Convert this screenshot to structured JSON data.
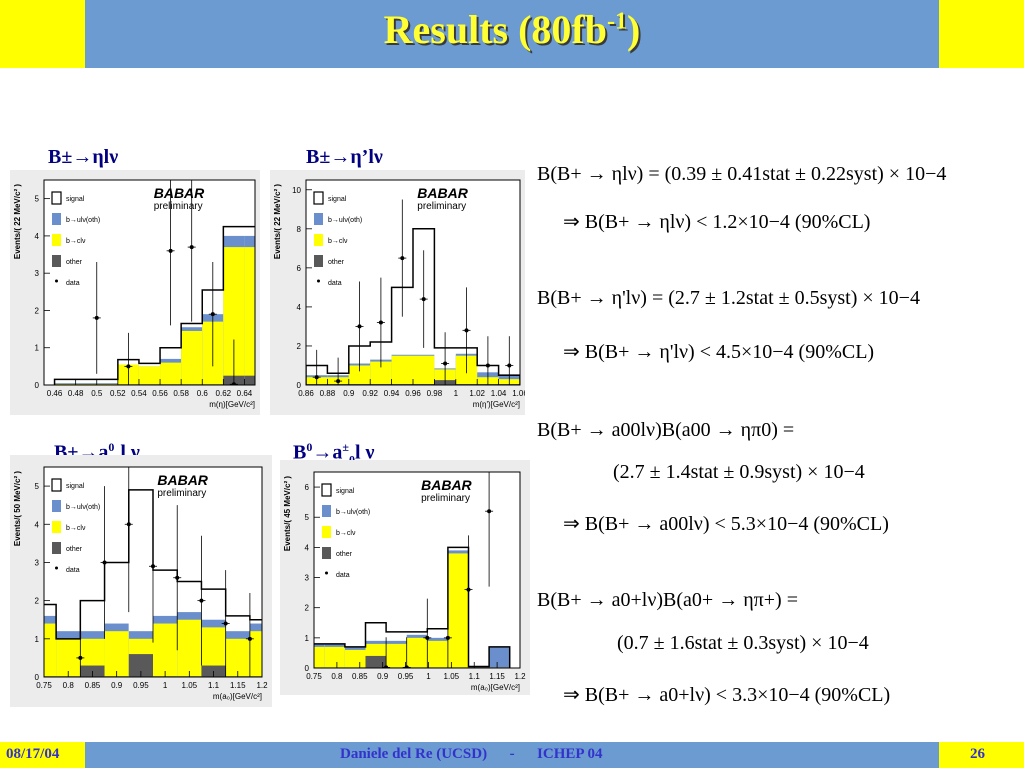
{
  "header": {
    "title": "Results (80fb",
    "title_sup": "-1",
    "title_end": ")"
  },
  "footer": {
    "date": "08/17/04",
    "center": "Daniele del Re (UCSD)      -      ICHEP 04",
    "page": "26"
  },
  "plot_labels": [
    {
      "text": "B±→ηlν"
    },
    {
      "text": "B±→η’lν"
    },
    {
      "pre": "B±→a",
      "sup": "0",
      "sub": "0",
      "post": "l ν"
    },
    {
      "pre": "B",
      "sup": "0",
      "mid": "→a",
      "sup2": "±",
      "sub": "0",
      "post": "l ν"
    }
  ],
  "equations": {
    "eta": {
      "main": "B(B+ → ηlν) = (0.39 ± 0.41stat ± 0.22syst) × 10−4",
      "limit": "⇒  B(B+ → ηlν) < 1.2×10−4 (90%CL)"
    },
    "etap": {
      "main": "B(B+ → η'lν) = (2.7 ± 1.2stat ± 0.5syst) × 10−4",
      "limit": "⇒  B(B+ → η'lν) < 4.5×10−4 (90%CL)"
    },
    "a00": {
      "main": "B(B+ → a00lν)B(a00 → ηπ0) =",
      "value": "(2.7 ± 1.4stat ± 0.9syst) × 10−4",
      "limit": "⇒  B(B+ → a00lν) < 5.3×10−4 (90%CL)"
    },
    "a0p": {
      "main": "B(B+ → a0+lν)B(a0+ → ηπ+) =",
      "value": "(0.7 ± 1.6stat ± 0.3syst) × 10−4",
      "limit": "⇒  B(B+ → a0+lν) < 3.3×10−4 (90%CL)"
    }
  },
  "legend": {
    "entries": [
      "signal",
      "b→ulν(oth)",
      "b→clν",
      "other",
      "data"
    ],
    "colors": {
      "signal": "#ffffff",
      "oth": "#6a8fcc",
      "clv": "#ffff00",
      "other": "#595959"
    }
  },
  "babar": {
    "logo": "BABAR",
    "tag": "preliminary"
  },
  "chart_data": [
    {
      "type": "bar",
      "stacked": true,
      "ylabel": "Events/( 22 MeV/c² )",
      "xlabel": "m(η)[GeV/c²]",
      "xlim": [
        0.45,
        0.65
      ],
      "ylim": [
        0,
        5.5
      ],
      "xticks": [
        "0.46",
        "0.48",
        "0.5",
        "0.52",
        "0.54",
        "0.56",
        "0.58",
        "0.6",
        "0.62",
        "0.64"
      ],
      "yticks": [
        "0",
        "1",
        "2",
        "3",
        "4",
        "5"
      ],
      "bins": [
        0.46,
        0.48,
        0.5,
        0.52,
        0.54,
        0.56,
        0.58,
        0.6,
        0.62,
        0.64
      ],
      "other": [
        0.02,
        0.02,
        0.02,
        0.02,
        0.02,
        0.02,
        0.02,
        0.02,
        0.25,
        0.25
      ],
      "clv": [
        0.03,
        0.03,
        0.03,
        0.55,
        0.5,
        0.6,
        1.45,
        1.7,
        3.7,
        3.7
      ],
      "oth": [
        0.05,
        0.05,
        0.05,
        0.55,
        0.5,
        0.7,
        1.55,
        1.9,
        4.0,
        4.0
      ],
      "total": [
        0.15,
        0.15,
        0.15,
        0.68,
        0.58,
        1.0,
        1.65,
        2.55,
        4.25,
        4.25
      ],
      "data": [
        {
          "x": 0.5,
          "y": 1.8,
          "err": 1.5
        },
        {
          "x": 0.53,
          "y": 0.5,
          "err": 0.9
        },
        {
          "x": 0.57,
          "y": 3.6,
          "err": 2.0
        },
        {
          "x": 0.59,
          "y": 3.7,
          "err": 2.0
        },
        {
          "x": 0.61,
          "y": 1.9,
          "err": 1.4
        },
        {
          "x": 0.63,
          "y": 0.02,
          "err": 1.2
        }
      ]
    },
    {
      "type": "bar",
      "stacked": true,
      "ylabel": "Events/( 22 MeV/c² )",
      "xlabel": "m(η')[GeV/c²]",
      "xlim": [
        0.86,
        1.06
      ],
      "ylim": [
        0,
        10.5
      ],
      "xticks": [
        "0.86",
        "0.88",
        "0.9",
        "0.92",
        "0.94",
        "0.96",
        "0.98",
        "1",
        "1.02",
        "1.04",
        "1.06"
      ],
      "yticks": [
        "0",
        "2",
        "4",
        "6",
        "8",
        "10"
      ],
      "bins": [
        0.86,
        0.88,
        0.9,
        0.92,
        0.94,
        0.96,
        0.98,
        1.0,
        1.02,
        1.04
      ],
      "other": [
        0.05,
        0.05,
        0.05,
        0.05,
        0.05,
        0.05,
        0.25,
        0.05,
        0.05,
        0.05
      ],
      "clv": [
        0.4,
        0.4,
        1.0,
        1.2,
        1.5,
        1.5,
        0.8,
        1.5,
        0.4,
        0.3
      ],
      "oth": [
        0.5,
        0.5,
        1.1,
        1.3,
        1.55,
        1.55,
        0.85,
        1.6,
        0.65,
        0.55
      ],
      "total": [
        1.0,
        0.6,
        2.0,
        2.2,
        5.0,
        8.0,
        1.9,
        1.9,
        1.0,
        0.5
      ],
      "data": [
        {
          "x": 0.87,
          "y": 0.4,
          "err": 1.4
        },
        {
          "x": 0.89,
          "y": 0.2,
          "err": 1.2
        },
        {
          "x": 0.91,
          "y": 3.0,
          "err": 2.3
        },
        {
          "x": 0.93,
          "y": 3.2,
          "err": 2.3
        },
        {
          "x": 0.95,
          "y": 6.5,
          "err": 3.0
        },
        {
          "x": 0.97,
          "y": 4.4,
          "err": 2.5
        },
        {
          "x": 0.99,
          "y": 1.1,
          "err": 1.6
        },
        {
          "x": 1.01,
          "y": 2.8,
          "err": 2.2
        },
        {
          "x": 1.03,
          "y": 1.0,
          "err": 1.5
        },
        {
          "x": 1.05,
          "y": 1.0,
          "err": 1.5
        }
      ]
    },
    {
      "type": "bar",
      "stacked": true,
      "ylabel": "Events/( 50 MeV/c² )",
      "xlabel": "m(a₀)[GeV/c²]",
      "xlim": [
        0.75,
        1.2
      ],
      "ylim": [
        0,
        5.5
      ],
      "xticks": [
        "0.75",
        "0.8",
        "0.85",
        "0.9",
        "0.95",
        "1",
        "1.05",
        "1.1",
        "1.15",
        "1.2"
      ],
      "yticks": [
        "0",
        "1",
        "2",
        "3",
        "4",
        "5"
      ],
      "bins": [
        0.725,
        0.775,
        0.825,
        0.875,
        0.925,
        0.975,
        1.025,
        1.075,
        1.125,
        1.175
      ],
      "other": [
        0.02,
        0.02,
        0.3,
        0.02,
        0.6,
        0.02,
        0.02,
        0.3,
        0.02,
        0.02
      ],
      "clv": [
        1.4,
        1.0,
        1.0,
        1.2,
        1.0,
        1.4,
        1.5,
        1.3,
        1.0,
        1.2
      ],
      "oth": [
        1.6,
        1.2,
        1.2,
        1.4,
        1.2,
        1.6,
        1.7,
        1.5,
        1.2,
        1.4
      ],
      "total": [
        1.9,
        1.0,
        2.0,
        3.0,
        4.9,
        2.8,
        2.5,
        2.3,
        1.6,
        1.5
      ],
      "data": [
        {
          "x": 0.825,
          "y": 0.5,
          "err": 1.3
        },
        {
          "x": 0.875,
          "y": 3.0,
          "err": 2.0
        },
        {
          "x": 0.925,
          "y": 4.0,
          "err": 2.3
        },
        {
          "x": 0.975,
          "y": 2.9,
          "err": 2.0
        },
        {
          "x": 1.025,
          "y": 2.6,
          "err": 1.9
        },
        {
          "x": 1.075,
          "y": 2.0,
          "err": 1.7
        },
        {
          "x": 1.125,
          "y": 1.4,
          "err": 1.4
        },
        {
          "x": 1.175,
          "y": 1.0,
          "err": 1.2
        }
      ]
    },
    {
      "type": "bar",
      "stacked": true,
      "ylabel": "Events/( 45 MeV/c² )",
      "xlabel": "m(a₀)[GeV/c²]",
      "xlim": [
        0.75,
        1.2
      ],
      "ylim": [
        0,
        6.5
      ],
      "xticks": [
        "0.75",
        "0.8",
        "0.85",
        "0.9",
        "0.95",
        "1",
        "1.05",
        "1.1",
        "1.15",
        "1.2"
      ],
      "yticks": [
        "0",
        "1",
        "2",
        "3",
        "4",
        "5",
        "6"
      ],
      "bins": [
        0.7275,
        0.7725,
        0.8175,
        0.8625,
        0.9075,
        0.9525,
        0.9975,
        1.0425,
        1.0875,
        1.1325
      ],
      "other": [
        0.02,
        0.02,
        0.02,
        0.4,
        0.02,
        0.02,
        0.02,
        0.02,
        0.02,
        0.02
      ],
      "clv": [
        0.7,
        0.7,
        0.6,
        0.8,
        0.8,
        1.0,
        0.9,
        3.8,
        0.02,
        0.02
      ],
      "oth": [
        0.8,
        0.8,
        0.7,
        0.9,
        0.9,
        1.1,
        1.0,
        3.9,
        0.05,
        0.7
      ],
      "total": [
        0.8,
        0.8,
        0.7,
        1.5,
        1.2,
        1.2,
        1.3,
        4.0,
        0.05,
        0.7
      ],
      "data": [
        {
          "x": 0.9075,
          "y": 0.02,
          "err": 1.0
        },
        {
          "x": 0.9525,
          "y": 0.02,
          "err": 1.0
        },
        {
          "x": 0.9975,
          "y": 1.0,
          "err": 1.3
        },
        {
          "x": 1.0425,
          "y": 1.0,
          "err": 1.4
        },
        {
          "x": 1.0875,
          "y": 2.6,
          "err": 1.8
        },
        {
          "x": 1.1325,
          "y": 5.2,
          "err": 2.5
        }
      ]
    }
  ]
}
